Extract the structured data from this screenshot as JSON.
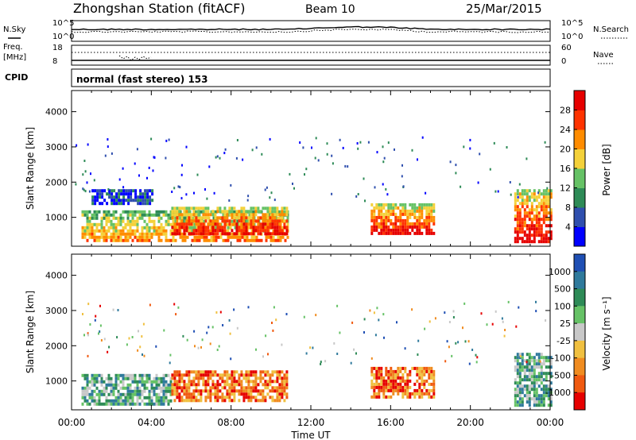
{
  "header": {
    "station_title": "Zhongshan Station (fitACF)",
    "beam": "Beam 10",
    "date": "25/Mar/2015"
  },
  "noise_panel": {
    "left_label": "N.Sky",
    "right_label": "N.Search",
    "left_ticks": [
      "10^5",
      "10^0"
    ],
    "right_ticks": [
      "10^5",
      "10^0"
    ]
  },
  "freq_panel": {
    "left_label_1": "Freq.",
    "left_label_2": "[MHz]",
    "right_label": "Nave",
    "left_ticks": [
      "18",
      "8"
    ],
    "right_ticks": [
      "60",
      "0"
    ]
  },
  "cpid": {
    "label": "CPID",
    "text": "normal (fast stereo) 153"
  },
  "x_axis": {
    "label": "Time UT",
    "ticks": [
      "00:00",
      "04:00",
      "08:00",
      "12:00",
      "16:00",
      "20:00",
      "00:00"
    ]
  },
  "chart_data": [
    {
      "type": "heatmap",
      "panel": "power",
      "ylabel": "Slant Range [km]",
      "yticks": [
        1000,
        2000,
        3000,
        4000
      ],
      "ylim": [
        180,
        4600
      ],
      "xlim": [
        0,
        24
      ],
      "colorbar": {
        "label": "Power [dB]",
        "ticks": [
          "4",
          "8",
          "12",
          "16",
          "20",
          "24",
          "28"
        ],
        "colors": [
          "#0000ff",
          "#2f4fae",
          "#2e8b57",
          "#66c266",
          "#f4d13a",
          "#ff8c00",
          "#ff3300",
          "#e60000"
        ]
      },
      "regions": [
        {
          "t0": 0.5,
          "t1": 10.8,
          "r0": 300,
          "r1": 1200,
          "level": "high"
        },
        {
          "t0": 5.0,
          "t1": 10.8,
          "r0": 500,
          "r1": 1300,
          "level": "strong"
        },
        {
          "t0": 15.0,
          "t1": 18.2,
          "r0": 500,
          "r1": 1400,
          "level": "strong"
        },
        {
          "t0": 1.0,
          "t1": 4.0,
          "r0": 1400,
          "r1": 1800,
          "level": "weak"
        },
        {
          "t0": 22.2,
          "t1": 24.0,
          "r0": 300,
          "r1": 1800,
          "level": "strong"
        }
      ]
    },
    {
      "type": "heatmap",
      "panel": "velocity",
      "ylabel": "Slant Range [km]",
      "yticks": [
        1000,
        2000,
        3000,
        4000
      ],
      "ylim": [
        180,
        4600
      ],
      "xlim": [
        0,
        24
      ],
      "colorbar": {
        "label": "Velocity [m s⁻¹]",
        "ticks": [
          "1000",
          "500",
          "100",
          "25",
          "-25",
          "-100",
          "-500",
          "-1000"
        ],
        "colors": [
          "#1f4fb4",
          "#2f7a9c",
          "#2e8b57",
          "#66c266",
          "#c8c8c8",
          "#f0c040",
          "#f08c20",
          "#f05a10",
          "#e60000"
        ]
      },
      "regions": [
        {
          "t0": 0.5,
          "t1": 5.0,
          "r0": 300,
          "r1": 1200,
          "level": "toward"
        },
        {
          "t0": 5.0,
          "t1": 10.8,
          "r0": 400,
          "r1": 1300,
          "level": "away"
        },
        {
          "t0": 15.0,
          "t1": 18.2,
          "r0": 500,
          "r1": 1400,
          "level": "away"
        },
        {
          "t0": 22.2,
          "t1": 24.0,
          "r0": 300,
          "r1": 1800,
          "level": "toward"
        }
      ]
    }
  ]
}
